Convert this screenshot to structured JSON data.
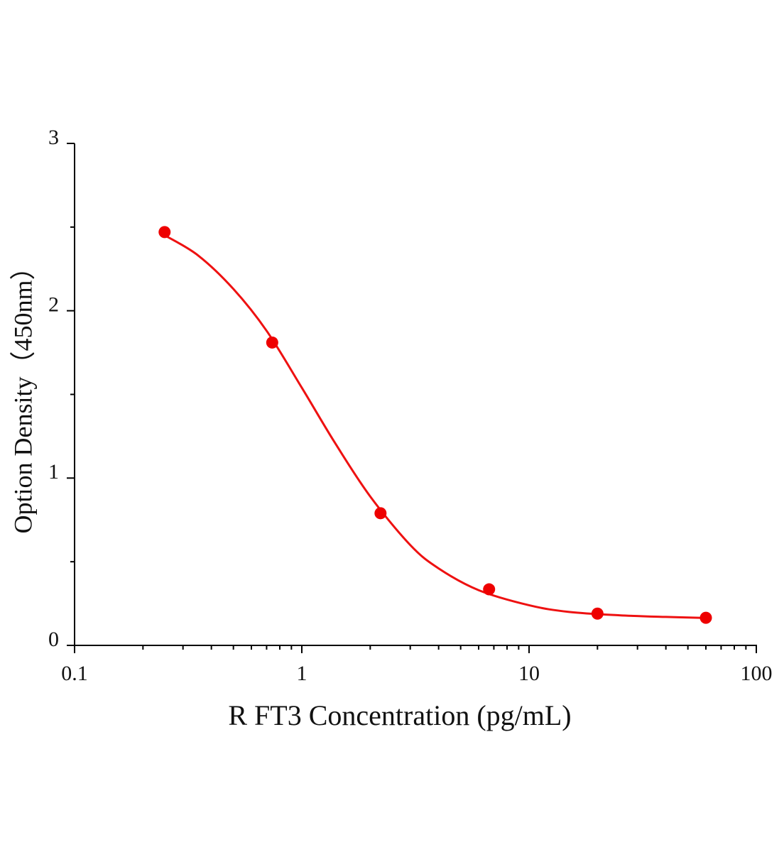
{
  "chart_data": {
    "type": "scatter",
    "xlabel": "R FT3 Concentration (pg/mL)",
    "ylabel": "Option Density（450nm）",
    "xscale": "log",
    "xlim": [
      0.1,
      100
    ],
    "xticks": [
      0.1,
      1,
      10,
      100
    ],
    "xminorticks": [
      0.2,
      0.3,
      0.4,
      0.5,
      0.6,
      0.7,
      0.8,
      0.9,
      2,
      3,
      4,
      5,
      6,
      7,
      8,
      9,
      20,
      30,
      40,
      50,
      60,
      70,
      80,
      90
    ],
    "ylim": [
      0,
      3
    ],
    "yticks": [
      0,
      1,
      2,
      3
    ],
    "yminorticks": [
      0.5,
      1.5,
      2.5
    ],
    "series": [
      {
        "type": "line",
        "color": "#ee1111",
        "x": [
          0.25,
          0.35,
          0.5,
          0.7,
          1,
          1.4,
          2,
          3,
          4,
          6,
          10,
          15,
          25,
          40,
          60
        ],
        "values": [
          2.45,
          2.33,
          2.13,
          1.88,
          1.54,
          1.21,
          0.89,
          0.6,
          0.46,
          0.33,
          0.24,
          0.2,
          0.18,
          0.17,
          0.164
        ]
      },
      {
        "type": "scatter",
        "color": "#ee0000",
        "x": [
          0.249,
          0.741,
          2.22,
          6.67,
          20,
          60
        ],
        "values": [
          2.47,
          1.81,
          0.79,
          0.335,
          0.19,
          0.165
        ]
      }
    ]
  }
}
